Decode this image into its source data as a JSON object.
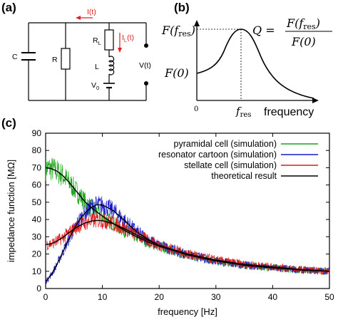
{
  "panel_a": {
    "label": "(a)",
    "current_total": "I(t)",
    "current_branch": "I",
    "current_branch_sub": "L",
    "current_branch_tail": "(t)",
    "c_label": "C",
    "r_label": "R",
    "rl_label": "R",
    "rl_sub": "L",
    "l_label": "L",
    "v0_label": "V",
    "v0_sub": "0",
    "vt_label": "V(t)",
    "accent_color": "#e0201c"
  },
  "panel_b": {
    "label": "(b)",
    "y_top_label": "F(f",
    "y_top_sub": "res",
    "y_top_close": ")",
    "y_bottom_label": "F(0)",
    "q_label": "Q =",
    "q_num": "F(f",
    "q_num_sub": "res",
    "q_num_close": ")",
    "q_den": "F(0)",
    "x_zero": "0",
    "x_fres": "f",
    "x_fres_sub": "res",
    "x_axis_label": "frequency"
  },
  "panel_c": {
    "label": "(c)",
    "chart_data": {
      "type": "line",
      "xlabel": "frequency [Hz]",
      "ylabel": "impedance function [MΩ]",
      "xlim": [
        0,
        50
      ],
      "ylim": [
        0,
        90
      ],
      "xticks": [
        0,
        10,
        20,
        30,
        40,
        50
      ],
      "yticks": [
        0,
        10,
        20,
        30,
        40,
        50,
        60,
        70,
        80,
        90
      ],
      "legend_position": "top-right",
      "grid": false,
      "series": [
        {
          "name": "pyramidal cell (simulation)",
          "color": "#1aa31a",
          "noisy": true,
          "x": [
            0,
            1,
            2,
            3,
            4,
            5,
            6,
            7,
            8,
            9,
            10,
            12,
            14,
            16,
            18,
            20,
            25,
            30,
            35,
            40,
            45,
            50
          ],
          "y": [
            70,
            69.5,
            68,
            65.5,
            62,
            58,
            54,
            50,
            47,
            44.5,
            42,
            37.5,
            33.5,
            30,
            27,
            24.5,
            19.5,
            16,
            13.5,
            12,
            10.8,
            10
          ]
        },
        {
          "name": "resonator cartoon (simulation)",
          "color": "#1a1acc",
          "noisy": true,
          "x": [
            0,
            1,
            2,
            3,
            4,
            5,
            6,
            7,
            8,
            9,
            10,
            12,
            14,
            16,
            18,
            20,
            25,
            30,
            35,
            40,
            45,
            50
          ],
          "y": [
            4,
            8,
            14,
            21,
            28,
            34.5,
            40,
            44,
            47,
            48.5,
            48.5,
            45,
            39,
            33,
            28.5,
            25,
            19.5,
            16,
            13.5,
            12,
            10.8,
            10
          ]
        },
        {
          "name": "stellate cell (simulation)",
          "color": "#dd1a1a",
          "noisy": true,
          "x": [
            0,
            1,
            2,
            3,
            4,
            5,
            6,
            7,
            8,
            9,
            10,
            12,
            14,
            16,
            18,
            20,
            25,
            30,
            35,
            40,
            45,
            50
          ],
          "y": [
            25.5,
            26,
            27.5,
            29.5,
            32,
            34.5,
            36.5,
            38,
            39,
            39.5,
            39.3,
            37.5,
            34.5,
            31,
            28,
            25,
            20,
            16.5,
            14,
            12.5,
            11,
            10
          ]
        },
        {
          "name": "theoretical result",
          "color": "#000000",
          "noisy": false,
          "x": [
            0,
            1,
            2,
            3,
            4,
            5,
            6,
            7,
            8,
            9,
            10,
            12,
            14,
            16,
            18,
            20,
            25,
            30,
            35,
            40,
            45,
            50
          ],
          "y": [
            25.5,
            26,
            27.5,
            29.5,
            32,
            34.5,
            36.5,
            38,
            39,
            39.5,
            39.3,
            37.5,
            34.5,
            31,
            28,
            25,
            20,
            16.5,
            14,
            12.5,
            11,
            10
          ]
        },
        {
          "name": "",
          "color": "#000000",
          "noisy": false,
          "x": [
            0,
            1,
            2,
            3,
            4,
            5,
            6,
            7,
            8,
            9,
            10,
            12,
            14,
            16,
            18,
            20,
            25,
            30,
            35,
            40,
            45,
            50
          ],
          "y": [
            70,
            69.5,
            68,
            65.5,
            62,
            58,
            54,
            50,
            47,
            44.5,
            42,
            37.5,
            33.5,
            30,
            27,
            24.5,
            19.5,
            16,
            13.5,
            12,
            10.8,
            10
          ]
        },
        {
          "name": "",
          "color": "#000000",
          "noisy": false,
          "x": [
            0,
            1,
            2,
            3,
            4,
            5,
            6,
            7,
            8,
            9,
            10,
            12,
            14,
            16,
            18,
            20,
            25,
            30,
            35,
            40,
            45,
            50
          ],
          "y": [
            4,
            8,
            14,
            21,
            28,
            34.5,
            40,
            44,
            47,
            48.5,
            48.5,
            45,
            39,
            33,
            28.5,
            25,
            19.5,
            16,
            13.5,
            12,
            10.8,
            10
          ]
        }
      ]
    }
  }
}
